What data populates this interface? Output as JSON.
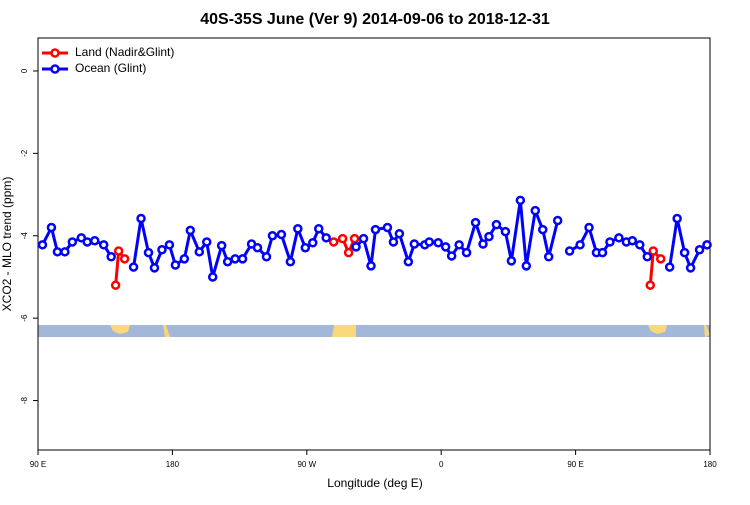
{
  "chart_data": {
    "type": "line",
    "title": "40S-35S June (Ver 9)   2014-09-06 to 2018-12-31",
    "x_label": "Longitude (deg E)",
    "y_label": "XCO2 - MLO trend (ppm)",
    "xlim": [
      90,
      540
    ],
    "ylim": [
      -9.2,
      0.8
    ],
    "xticks": [
      {
        "value": 90,
        "label": "90 E"
      },
      {
        "value": 180,
        "label": "180"
      },
      {
        "value": 270,
        "label": "90 W"
      },
      {
        "value": 360,
        "label": "0"
      },
      {
        "value": 450,
        "label": "90 E"
      },
      {
        "value": 540,
        "label": "180"
      }
    ],
    "yticks": [
      0,
      -2,
      -4,
      -6,
      -8
    ],
    "legend": "top-left",
    "series": [
      {
        "name": "Land (Nadir&Glint)",
        "color": "#ff0000",
        "x": [
          142,
          144,
          148,
          null,
          288,
          294,
          298,
          302,
          null,
          500,
          502,
          507,
          null,
          538
        ],
        "values": [
          -5.2,
          -4.37,
          -4.56,
          null,
          -4.15,
          -4.07,
          -4.41,
          -4.07,
          null,
          -5.2,
          -4.37,
          -4.56,
          null,
          -4.22
        ]
      },
      {
        "name": "Ocean (Glint)",
        "color": "#0000ff",
        "x": [
          93,
          99,
          103,
          108,
          113,
          119,
          123,
          128,
          134,
          139,
          null,
          154,
          159,
          164,
          168,
          173,
          178,
          182,
          188,
          192,
          198,
          203,
          207,
          213,
          217,
          222,
          227,
          233,
          237,
          243,
          247,
          253,
          259,
          264,
          269,
          274,
          278,
          283,
          null,
          303,
          308,
          313,
          316,
          324,
          328,
          332,
          338,
          342,
          349,
          352,
          358,
          363,
          367,
          372,
          377,
          383,
          388,
          392,
          397,
          403,
          407,
          413,
          417,
          423,
          428,
          432,
          438,
          null,
          446,
          453,
          459,
          464,
          468,
          473,
          479,
          484,
          488,
          493,
          498,
          null,
          513,
          518,
          523,
          527,
          533,
          538
        ],
        "values": [
          -4.22,
          -3.8,
          -4.39,
          -4.39,
          -4.15,
          -4.05,
          -4.15,
          -4.12,
          -4.22,
          -4.51,
          null,
          -4.76,
          -3.58,
          -4.41,
          -4.78,
          -4.34,
          -4.22,
          -4.71,
          -4.56,
          -3.87,
          -4.39,
          -4.15,
          -5.0,
          -4.24,
          -4.63,
          -4.56,
          -4.56,
          -4.2,
          -4.29,
          -4.51,
          -4.0,
          -3.97,
          -4.63,
          -3.83,
          -4.29,
          -4.17,
          -3.83,
          -4.05,
          null,
          -4.27,
          -4.07,
          -4.73,
          -3.85,
          -3.8,
          -4.15,
          -3.95,
          -4.63,
          -4.2,
          -4.22,
          -4.15,
          -4.17,
          -4.27,
          -4.49,
          -4.22,
          -4.41,
          -3.68,
          -4.2,
          -4.02,
          -3.73,
          -3.9,
          -4.61,
          -3.14,
          -4.73,
          -3.39,
          -3.85,
          -4.51,
          -3.63,
          null,
          -4.37,
          -4.22,
          -3.8,
          -4.41,
          -4.41,
          -4.15,
          -4.05,
          -4.15,
          -4.12,
          -4.22,
          -4.51,
          null,
          -4.76,
          -3.58,
          -4.41,
          -4.78,
          -4.34,
          -4.22
        ]
      }
    ]
  }
}
